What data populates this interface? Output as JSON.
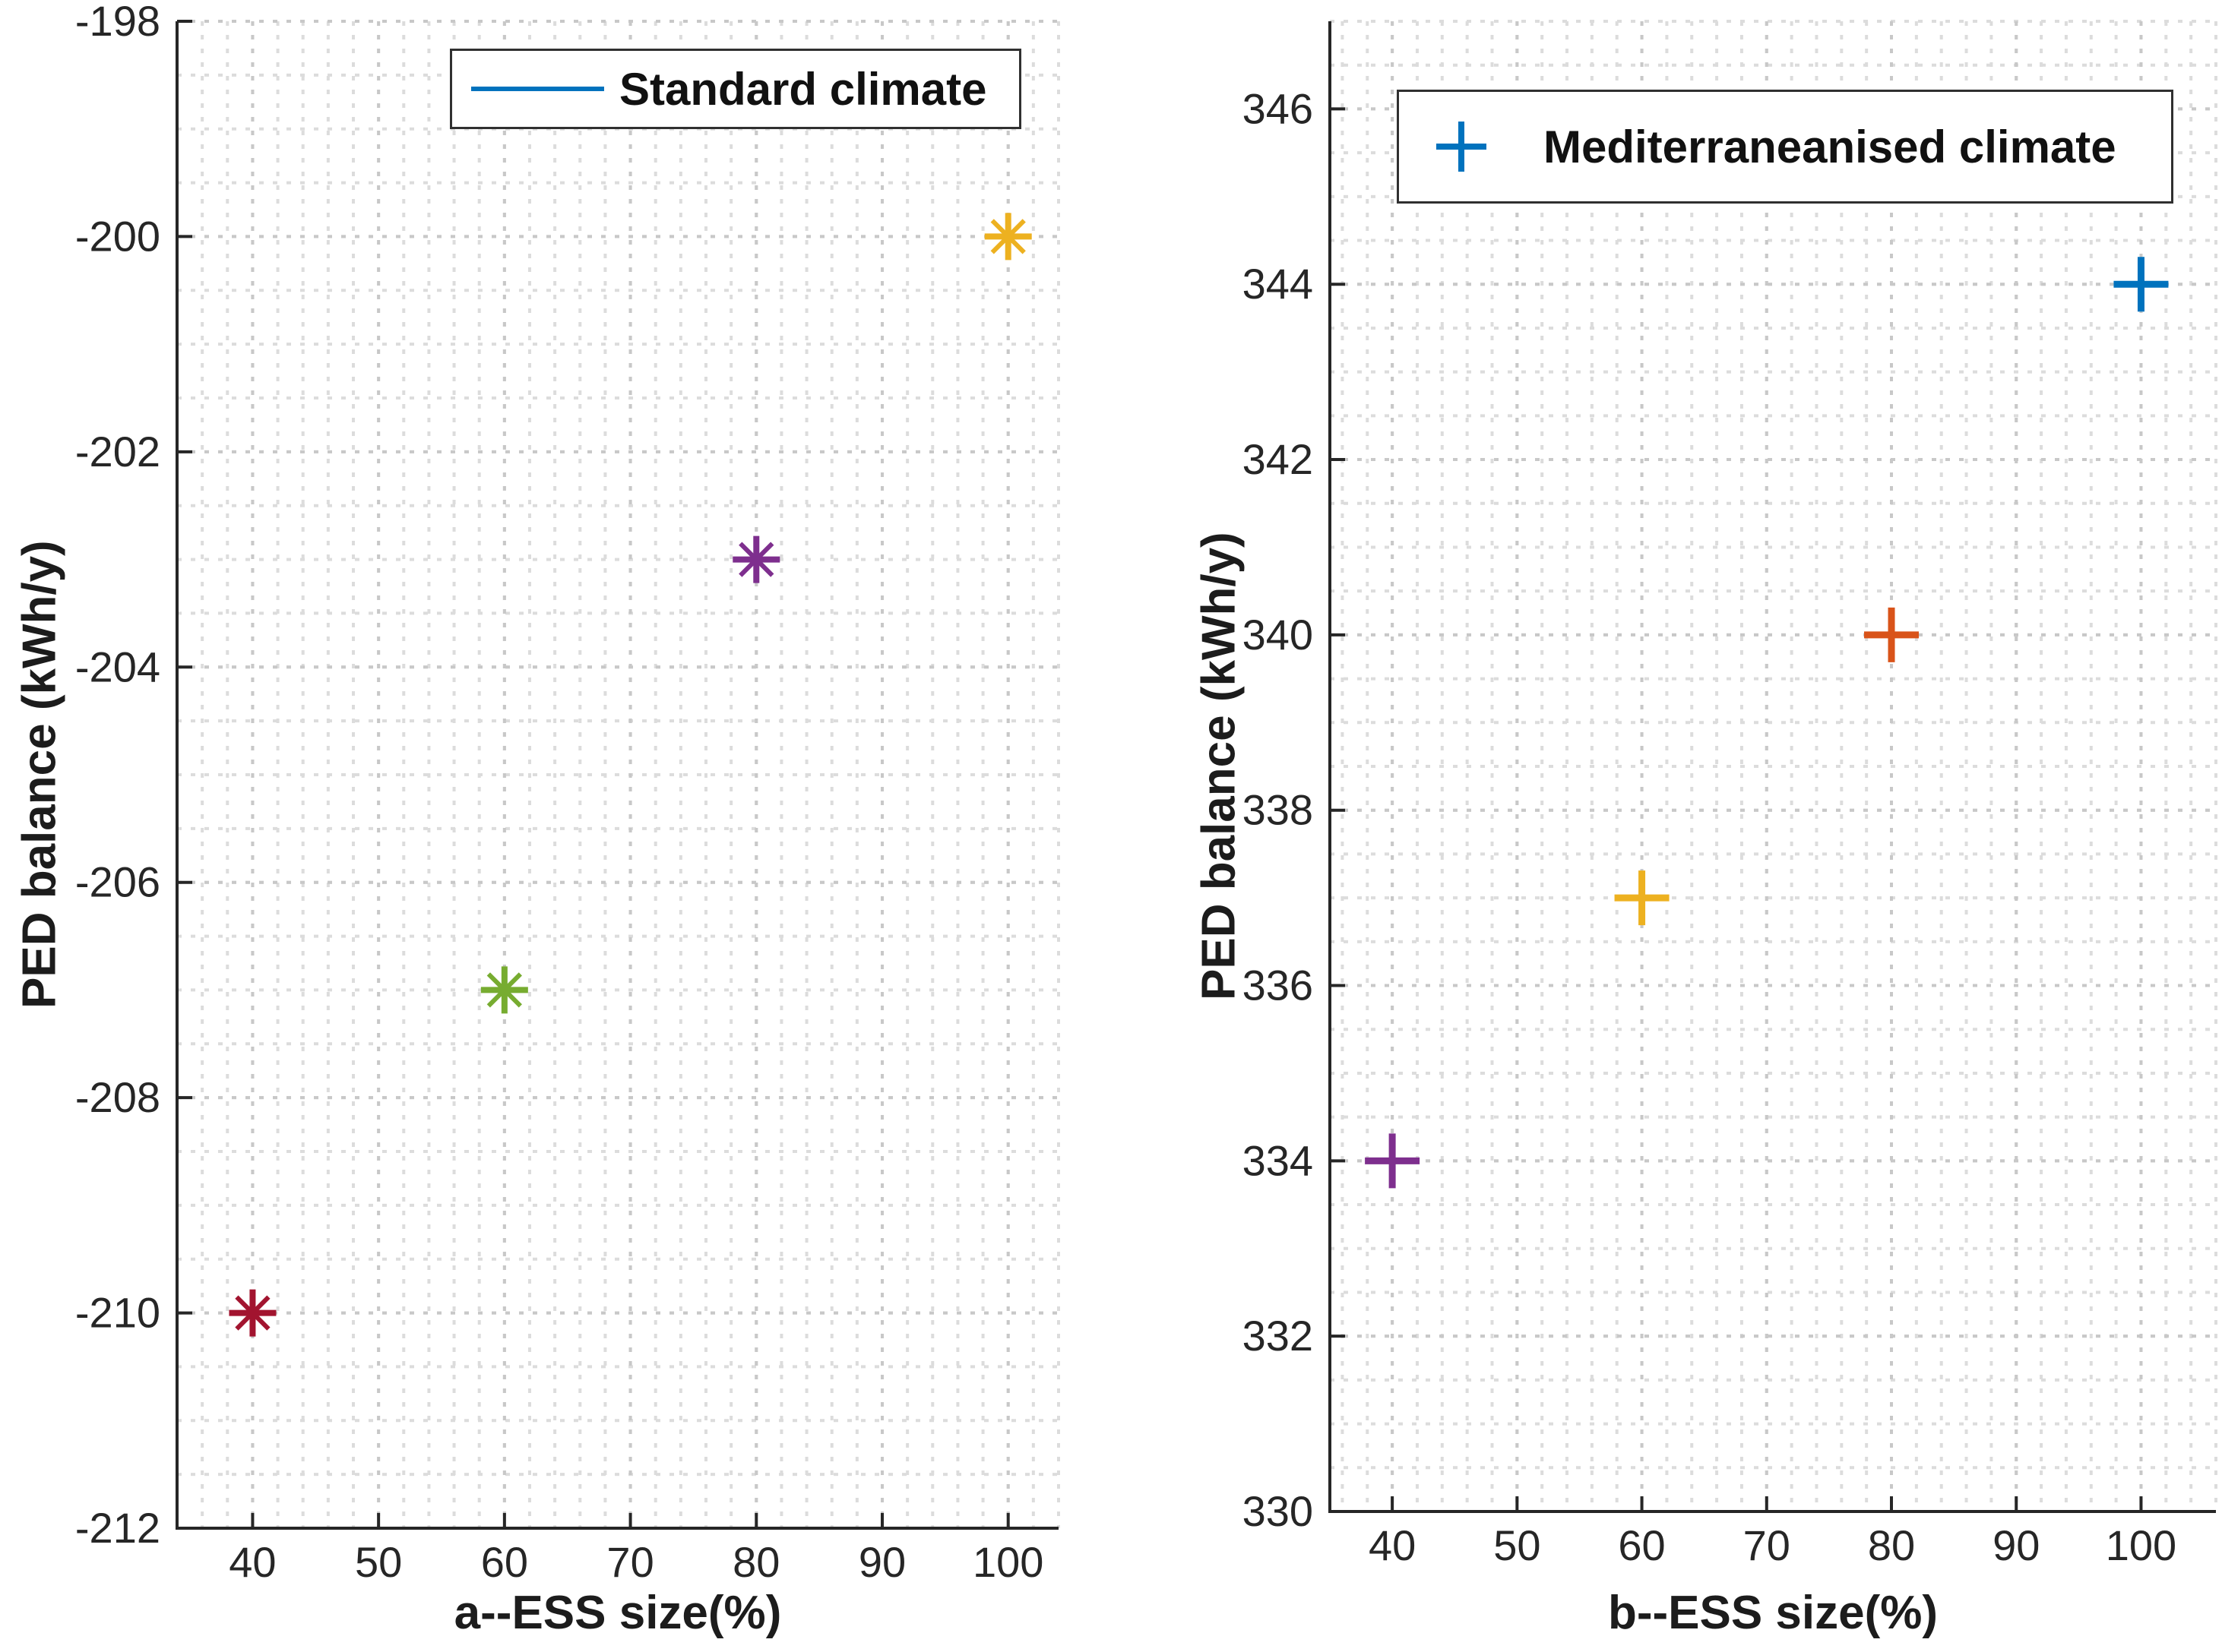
{
  "colors": {
    "background": "#ffffff",
    "axis": "#262626",
    "tick_label": "#262626",
    "axis_label_text": "#1c1c1c",
    "grid_minor": "#dcdcdc",
    "grid_major": "#c8c8c8",
    "legend_border": "#303030",
    "matlab_blue": "#0072BD",
    "matlab_orange": "#D95319",
    "matlab_yellow": "#EDB120",
    "matlab_purple": "#7E2F8E",
    "matlab_green": "#77AC30",
    "matlab_dark_red": "#A2142F"
  },
  "chart_data": [
    {
      "id": "left",
      "type": "scatter",
      "title": "",
      "xlabel": "a--ESS size(%)",
      "ylabel": "PED balance (kWh/y)",
      "legend_label": "Standard climate",
      "legend_symbol": "line",
      "legend_symbol_color": "#0072BD",
      "legend_position": "top-right-inside",
      "marker": "asterisk",
      "grid": true,
      "minor_grid": true,
      "xlim": [
        34,
        104
      ],
      "ylim": [
        -212,
        -198
      ],
      "xticks": [
        40,
        50,
        60,
        70,
        80,
        90,
        100
      ],
      "yticks": [
        -212,
        -210,
        -208,
        -206,
        -204,
        -202,
        -200,
        -198
      ],
      "x_minor_step": 2,
      "y_minor_step": 0.5,
      "points": [
        {
          "x": 40,
          "y": -210,
          "color": "#A2142F"
        },
        {
          "x": 60,
          "y": -207,
          "color": "#77AC30"
        },
        {
          "x": 80,
          "y": -203,
          "color": "#7E2F8E"
        },
        {
          "x": 100,
          "y": -200,
          "color": "#EDB120"
        }
      ]
    },
    {
      "id": "right",
      "type": "scatter",
      "title": "",
      "xlabel": "b--ESS size(%)",
      "ylabel": "PED balance (kWh/y)",
      "legend_label": "Mediterraneanised climate",
      "legend_symbol": "plus",
      "legend_symbol_color": "#0072BD",
      "legend_position": "top-right-inside",
      "marker": "plus",
      "grid": true,
      "minor_grid": true,
      "xlim": [
        35,
        106
      ],
      "ylim": [
        330,
        347
      ],
      "xticks": [
        40,
        50,
        60,
        70,
        80,
        90,
        100
      ],
      "yticks": [
        330,
        332,
        334,
        336,
        338,
        340,
        342,
        344,
        346
      ],
      "x_minor_step": 2,
      "y_minor_step": 0.5,
      "points": [
        {
          "x": 40,
          "y": 334,
          "color": "#7E2F8E"
        },
        {
          "x": 60,
          "y": 337,
          "color": "#EDB120"
        },
        {
          "x": 80,
          "y": 340,
          "color": "#D95319"
        },
        {
          "x": 100,
          "y": 344,
          "color": "#0072BD"
        }
      ]
    }
  ]
}
